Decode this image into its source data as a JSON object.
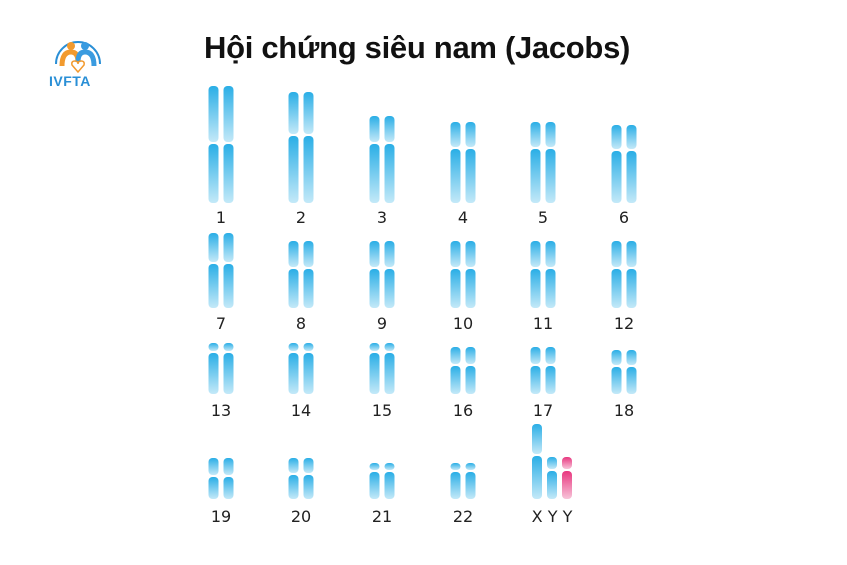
{
  "title": "Hội chứng siêu nam (Jacobs)",
  "logo": {
    "text": "IVFTA",
    "colors": {
      "blue": "#2a8fd6",
      "orange": "#f29a2e"
    }
  },
  "colors": {
    "chromosome_top": "#2aaee6",
    "chromosome_bottom": "#c4e9f8",
    "extra_y_top": "#e8367f",
    "extra_y_bottom": "#f7c4d9"
  },
  "karyotype": {
    "pairs": [
      "1",
      "2",
      "3",
      "4",
      "5",
      "6",
      "7",
      "8",
      "9",
      "10",
      "11",
      "12",
      "13",
      "14",
      "15",
      "16",
      "17",
      "18",
      "19",
      "20",
      "21",
      "22"
    ],
    "sex_chromosomes": {
      "label": "X Y Y",
      "chromosomes": [
        "X",
        "Y",
        "Y"
      ],
      "extra": "Y"
    }
  }
}
